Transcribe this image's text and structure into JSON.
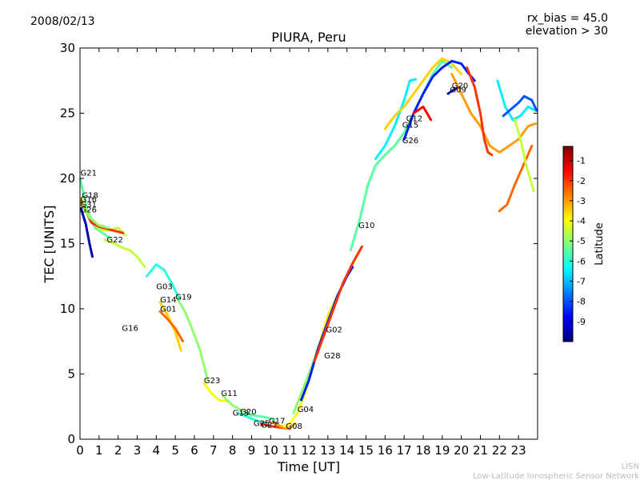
{
  "header": {
    "date": "2008/02/13",
    "info_line1": "rx_bias = 45.0",
    "info_line2": "elevation > 30"
  },
  "footer": {
    "line1": "LISN",
    "line2": "Low-Latitude Ionospheric Sensor Network"
  },
  "chart_data": {
    "type": "scatter",
    "title": "PIURA, Peru",
    "xlabel": "Time [UT]",
    "ylabel": "TEC [UNITS]",
    "xlim": [
      0,
      24
    ],
    "ylim": [
      0,
      30
    ],
    "xticks": [
      "0",
      "1",
      "2",
      "3",
      "4",
      "5",
      "6",
      "7",
      "8",
      "9",
      "10",
      "11",
      "12",
      "13",
      "14",
      "15",
      "16",
      "17",
      "18",
      "19",
      "20",
      "21",
      "22",
      "23"
    ],
    "yticks": [
      "0",
      "5",
      "10",
      "15",
      "20",
      "25",
      "30"
    ],
    "colorbar": {
      "label": "Latitude",
      "range": [
        -10,
        -0.3
      ],
      "ticks": [
        "-1",
        "-2",
        "-3",
        "-4",
        "-5",
        "-6",
        "-7",
        "-8",
        "-9"
      ],
      "colors": [
        "#00007f",
        "#0000ff",
        "#007fff",
        "#00ffff",
        "#7fff7f",
        "#ffff00",
        "#ff7f00",
        "#ff0000",
        "#7f0000"
      ]
    },
    "series": [
      {
        "name": "G21",
        "lat": -5.5,
        "points": [
          [
            0,
            20
          ],
          [
            0.4,
            17.5
          ],
          [
            0.8,
            16.2
          ],
          [
            1.2,
            15.8
          ],
          [
            1.6,
            15.4
          ]
        ]
      },
      {
        "name": "G18",
        "lat": -4.5,
        "points": [
          [
            0.05,
            18.5
          ],
          [
            0.5,
            17.0
          ],
          [
            1.0,
            16.1
          ],
          [
            1.5,
            16.0
          ],
          [
            2.0,
            16.2
          ],
          [
            2.4,
            15.6
          ]
        ]
      },
      {
        "name": "G16",
        "lat": -2.0,
        "points": [
          [
            0.05,
            18.2
          ],
          [
            0.6,
            16.6
          ],
          [
            1.0,
            16.3
          ],
          [
            1.5,
            16.1
          ],
          [
            2.3,
            15.8
          ]
        ]
      },
      {
        "name": "G31",
        "lat": -5.0,
        "points": [
          [
            0.05,
            18.0
          ],
          [
            0.5,
            17.0
          ],
          [
            1.0,
            16.4
          ],
          [
            1.5,
            16.2
          ]
        ]
      },
      {
        "name": "G26",
        "lat": -9.5,
        "points": [
          [
            0.05,
            17.7
          ],
          [
            0.3,
            16.5
          ],
          [
            0.5,
            15.0
          ],
          [
            0.65,
            14.0
          ]
        ]
      },
      {
        "name": "G22",
        "lat": -4.5,
        "points": [
          [
            1.3,
            15.3
          ],
          [
            1.8,
            15.0
          ],
          [
            2.2,
            14.7
          ],
          [
            2.6,
            14.5
          ],
          [
            3.0,
            14.0
          ],
          [
            3.4,
            13.2
          ]
        ]
      },
      {
        "name": "G03",
        "lat": -6.0,
        "points": [
          [
            3.5,
            12.5
          ],
          [
            4.0,
            13.4
          ],
          [
            4.4,
            13.0
          ],
          [
            4.8,
            12.0
          ],
          [
            5.2,
            10.8
          ]
        ]
      },
      {
        "name": "G14",
        "lat": -3.5,
        "points": [
          [
            4.2,
            10.5
          ],
          [
            4.6,
            9.5
          ],
          [
            5.0,
            8.2
          ],
          [
            5.3,
            6.8
          ]
        ]
      },
      {
        "name": "G01",
        "lat": -2.5,
        "points": [
          [
            4.2,
            9.8
          ],
          [
            4.6,
            9.2
          ],
          [
            5.0,
            8.5
          ],
          [
            5.4,
            7.5
          ]
        ]
      },
      {
        "name": "G19",
        "lat": -5.0,
        "points": [
          [
            5.1,
            10.8
          ],
          [
            5.5,
            9.8
          ],
          [
            5.9,
            8.4
          ],
          [
            6.3,
            6.8
          ],
          [
            6.7,
            4.5
          ]
        ]
      },
      {
        "name": "G23",
        "lat": -4.0,
        "points": [
          [
            6.5,
            4.3
          ],
          [
            6.9,
            3.5
          ],
          [
            7.3,
            3.0
          ],
          [
            7.7,
            2.9
          ]
        ]
      },
      {
        "name": "G11",
        "lat": -5.0,
        "points": [
          [
            7.5,
            3.3
          ],
          [
            8.0,
            2.6
          ],
          [
            8.5,
            2.2
          ],
          [
            9.0,
            1.8
          ]
        ]
      },
      {
        "name": "G13",
        "lat": -6.0,
        "points": [
          [
            8.3,
            2.0
          ],
          [
            8.8,
            1.7
          ],
          [
            9.3,
            1.4
          ],
          [
            9.8,
            1.2
          ]
        ]
      },
      {
        "name": "G20",
        "lat": -5.5,
        "points": [
          [
            8.7,
            2.0
          ],
          [
            9.2,
            1.8
          ],
          [
            9.7,
            1.7
          ],
          [
            10.2,
            1.5
          ]
        ]
      },
      {
        "name": "G25",
        "lat": -2.0,
        "points": [
          [
            9.5,
            1.2
          ],
          [
            10.0,
            1.0
          ],
          [
            10.5,
            0.9
          ],
          [
            11.0,
            0.8
          ]
        ]
      },
      {
        "name": "G27",
        "lat": -3.0,
        "points": [
          [
            10.1,
            1.3
          ],
          [
            10.5,
            1.0
          ],
          [
            10.9,
            0.8
          ],
          [
            11.3,
            1.2
          ]
        ]
      },
      {
        "name": "G08",
        "lat": -4.0,
        "points": [
          [
            10.7,
            1.0
          ],
          [
            11.0,
            1.2
          ],
          [
            11.4,
            2.0
          ],
          [
            11.8,
            3.5
          ],
          [
            12.2,
            5.5
          ],
          [
            12.6,
            7.5
          ],
          [
            13.0,
            9.5
          ],
          [
            13.5,
            11.0
          ],
          [
            14.0,
            12.5
          ],
          [
            14.5,
            14.0
          ]
        ]
      },
      {
        "name": "G04",
        "lat": -5.0,
        "points": [
          [
            11.2,
            2.0
          ],
          [
            11.6,
            3.5
          ],
          [
            12.0,
            5.0
          ],
          [
            12.5,
            7.0
          ]
        ]
      },
      {
        "name": "G02",
        "lat": -8.5,
        "points": [
          [
            11.6,
            3.0
          ],
          [
            12.0,
            4.5
          ],
          [
            12.5,
            7.0
          ],
          [
            13.0,
            9.0
          ],
          [
            13.5,
            11.0
          ],
          [
            14.0,
            12.5
          ],
          [
            14.3,
            13.2
          ]
        ]
      },
      {
        "name": "G28",
        "lat": -2.0,
        "points": [
          [
            12.3,
            6.0
          ],
          [
            12.8,
            8.0
          ],
          [
            13.3,
            10.0
          ],
          [
            13.8,
            12.0
          ],
          [
            14.3,
            13.5
          ],
          [
            14.8,
            14.8
          ]
        ]
      },
      {
        "name": "G10",
        "lat": -5.5,
        "points": [
          [
            14.2,
            14.5
          ],
          [
            14.7,
            17.0
          ],
          [
            15.1,
            19.5
          ],
          [
            15.5,
            21.0
          ],
          [
            16.0,
            21.8
          ],
          [
            16.5,
            22.5
          ],
          [
            17.0,
            23.5
          ],
          [
            17.5,
            25.0
          ],
          [
            18.0,
            26.5
          ],
          [
            18.5,
            28.0
          ],
          [
            19.0,
            29.0
          ],
          [
            19.5,
            28.5
          ]
        ]
      },
      {
        "name": "G12",
        "lat": -6.5,
        "points": [
          [
            15.5,
            21.5
          ],
          [
            16.0,
            22.5
          ],
          [
            16.5,
            24.0
          ],
          [
            17.0,
            26.0
          ],
          [
            17.3,
            27.5
          ],
          [
            17.6,
            27.6
          ]
        ]
      },
      {
        "name": "G15",
        "lat": -3.5,
        "points": [
          [
            16.0,
            23.8
          ],
          [
            16.5,
            24.8
          ],
          [
            17.0,
            25.5
          ],
          [
            17.5,
            26.5
          ],
          [
            18.0,
            27.5
          ],
          [
            18.5,
            28.5
          ],
          [
            19.0,
            29.2
          ],
          [
            19.5,
            28.8
          ],
          [
            20.0,
            28.0
          ]
        ]
      },
      {
        "name": "G26",
        "lat": -8.5,
        "points": [
          [
            17.0,
            23.0
          ],
          [
            17.5,
            25.0
          ],
          [
            18.0,
            26.5
          ],
          [
            18.5,
            27.8
          ],
          [
            19.0,
            28.5
          ],
          [
            19.5,
            29.0
          ],
          [
            20.0,
            28.8
          ],
          [
            20.4,
            28.0
          ],
          [
            20.7,
            27.5
          ]
        ]
      },
      {
        "name": "G29",
        "lat": -1.5,
        "points": [
          [
            17.5,
            25.0
          ],
          [
            18.0,
            25.5
          ],
          [
            18.2,
            25.0
          ],
          [
            18.4,
            24.5
          ]
        ]
      },
      {
        "name": "G09",
        "lat": -9.5,
        "points": [
          [
            19.3,
            26.5
          ],
          [
            19.6,
            26.8
          ],
          [
            19.9,
            27.0
          ]
        ]
      },
      {
        "name": "G20",
        "lat": -3.0,
        "points": [
          [
            19.5,
            28.0
          ],
          [
            20.0,
            26.5
          ],
          [
            20.5,
            25.0
          ],
          [
            21.0,
            24.0
          ],
          [
            21.5,
            22.5
          ],
          [
            22.0,
            22.0
          ],
          [
            22.5,
            22.5
          ],
          [
            23.0,
            23.0
          ],
          [
            23.5,
            24.0
          ],
          [
            23.9,
            24.2
          ]
        ]
      },
      {
        "name": "",
        "lat": -2.0,
        "points": [
          [
            20.3,
            28.5
          ],
          [
            20.7,
            27.0
          ],
          [
            21.0,
            25.0
          ],
          [
            21.2,
            23.0
          ],
          [
            21.4,
            22.0
          ],
          [
            21.6,
            21.8
          ]
        ]
      },
      {
        "name": "",
        "lat": -6.5,
        "points": [
          [
            21.9,
            27.5
          ],
          [
            22.3,
            25.5
          ],
          [
            22.7,
            24.5
          ],
          [
            23.1,
            24.8
          ],
          [
            23.5,
            25.5
          ],
          [
            23.9,
            25.2
          ]
        ]
      },
      {
        "name": "",
        "lat": -8.0,
        "points": [
          [
            22.2,
            24.8
          ],
          [
            22.6,
            25.3
          ],
          [
            23.0,
            25.8
          ],
          [
            23.3,
            26.3
          ],
          [
            23.7,
            26.0
          ],
          [
            23.95,
            25.2
          ]
        ]
      },
      {
        "name": "",
        "lat": -2.5,
        "points": [
          [
            22.0,
            17.5
          ],
          [
            22.4,
            18.0
          ],
          [
            22.8,
            19.5
          ],
          [
            23.1,
            20.5
          ],
          [
            23.4,
            21.5
          ],
          [
            23.7,
            22.5
          ]
        ]
      },
      {
        "name": "",
        "lat": -4.5,
        "points": [
          [
            22.8,
            24.5
          ],
          [
            23.1,
            23.0
          ],
          [
            23.4,
            21.0
          ],
          [
            23.6,
            20.0
          ],
          [
            23.8,
            19.0
          ]
        ]
      }
    ],
    "labels": [
      {
        "text": "G21",
        "x": 0.02,
        "y": 20.2
      },
      {
        "text": "G18",
        "x": 0.1,
        "y": 18.5
      },
      {
        "text": "G16",
        "x": 0.02,
        "y": 18.2
      },
      {
        "text": "G31",
        "x": 0.02,
        "y": 17.8
      },
      {
        "text": "G26",
        "x": 0.02,
        "y": 17.4
      },
      {
        "text": "G22",
        "x": 1.4,
        "y": 15.1
      },
      {
        "text": "G03",
        "x": 4.0,
        "y": 11.5
      },
      {
        "text": "G14",
        "x": 4.2,
        "y": 10.5
      },
      {
        "text": "G19",
        "x": 5.0,
        "y": 10.7
      },
      {
        "text": "G01",
        "x": 4.2,
        "y": 9.8
      },
      {
        "text": "G16",
        "x": 2.2,
        "y": 8.3
      },
      {
        "text": "G23",
        "x": 6.5,
        "y": 4.3
      },
      {
        "text": "G11",
        "x": 7.4,
        "y": 3.3
      },
      {
        "text": "G13",
        "x": 8.0,
        "y": 1.8
      },
      {
        "text": "G20",
        "x": 8.4,
        "y": 1.9
      },
      {
        "text": "G25",
        "x": 9.1,
        "y": 1.0
      },
      {
        "text": "G17",
        "x": 9.9,
        "y": 1.2
      },
      {
        "text": "G27",
        "x": 9.5,
        "y": 0.9
      },
      {
        "text": "G08",
        "x": 10.8,
        "y": 0.8
      },
      {
        "text": "G04",
        "x": 11.4,
        "y": 2.1
      },
      {
        "text": "G02",
        "x": 12.9,
        "y": 8.2
      },
      {
        "text": "G28",
        "x": 12.8,
        "y": 6.2
      },
      {
        "text": "G10",
        "x": 14.6,
        "y": 16.2
      },
      {
        "text": "G12",
        "x": 17.1,
        "y": 24.4
      },
      {
        "text": "G15",
        "x": 16.9,
        "y": 23.9
      },
      {
        "text": "G26",
        "x": 16.9,
        "y": 22.7
      },
      {
        "text": "G20",
        "x": 19.5,
        "y": 26.9
      },
      {
        "text": "G09",
        "x": 19.4,
        "y": 26.6
      }
    ]
  }
}
